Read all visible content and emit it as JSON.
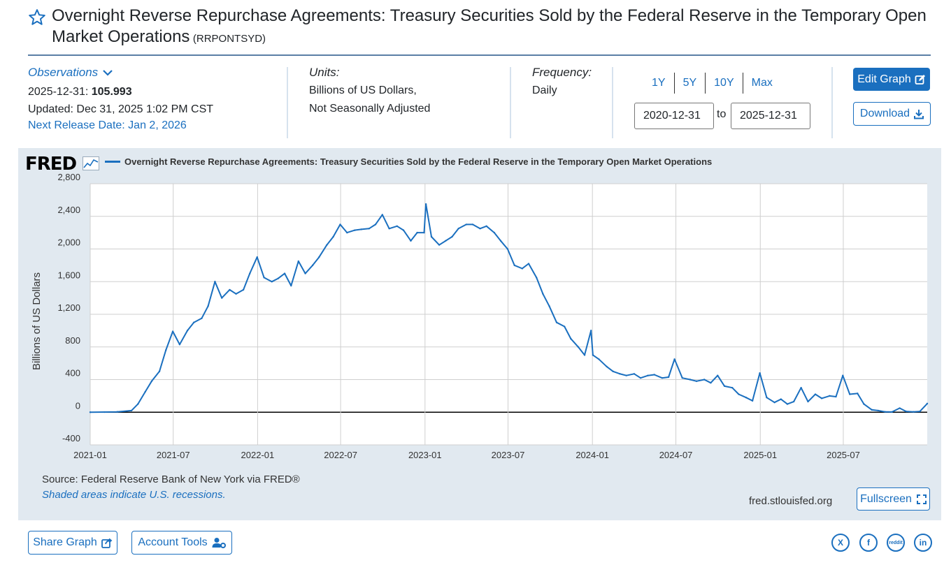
{
  "header": {
    "title": "Overnight Reverse Repurchase Agreements: Treasury Securities Sold by the Federal Reserve in the Temporary Open Market Operations",
    "series_id": "(RRPONTSYD)"
  },
  "observations": {
    "label": "Observations",
    "date": "2025-12-31:",
    "value": "105.993",
    "updated": "Updated: Dec 31, 2025 1:02 PM CST",
    "next_release": "Next Release Date: Jan 2, 2026"
  },
  "units": {
    "label": "Units:",
    "line1": "Billions of US Dollars,",
    "line2": "Not Seasonally Adjusted"
  },
  "frequency": {
    "label": "Frequency:",
    "value": "Daily"
  },
  "range": {
    "buttons": [
      "1Y",
      "5Y",
      "10Y",
      "Max"
    ],
    "start": "2020-12-31",
    "to": "to",
    "end": "2025-12-31"
  },
  "actions": {
    "edit_graph": "Edit Graph",
    "download": "Download",
    "fullscreen": "Fullscreen",
    "share_graph": "Share Graph",
    "account_tools": "Account Tools"
  },
  "graph": {
    "logo": "FRED",
    "source": "Source: Federal Reserve Bank of New York via FRED®",
    "recession_note": "Shaded areas indicate U.S. recessions.",
    "url": "fred.stlouisfed.org"
  },
  "social": [
    "X",
    "f",
    "reddit",
    "in"
  ],
  "colors": {
    "accent": "#1a6fbf",
    "line": "#1a6fbf",
    "panel": "#e1e9f0"
  },
  "chart_data": {
    "type": "line",
    "title": "Overnight Reverse Repurchase Agreements: Treasury Securities Sold by the Federal Reserve in the Temporary Open Market Operations",
    "xlabel": "",
    "ylabel": "Billions of US Dollars",
    "ylim": [
      -400,
      2800
    ],
    "yticks": [
      -400,
      0,
      400,
      800,
      1200,
      1600,
      2000,
      2400,
      2800
    ],
    "ytick_labels": [
      "-400",
      "0",
      "400",
      "800",
      "1,200",
      "1,600",
      "2,000",
      "2,400",
      "2,800"
    ],
    "xlim": [
      "2021-01-01",
      "2025-12-31"
    ],
    "xtick_labels": [
      "2021-01",
      "2021-07",
      "2022-01",
      "2022-07",
      "2023-01",
      "2023-07",
      "2024-01",
      "2024-07",
      "2025-01",
      "2025-07"
    ],
    "grid": true,
    "series": [
      {
        "name": "Overnight Reverse Repurchase Agreements: Treasury Securities Sold by the Federal Reserve in the Temporary Open Market Operations",
        "x": [
          "2021-01-01",
          "2021-02-01",
          "2021-03-01",
          "2021-04-01",
          "2021-04-15",
          "2021-05-01",
          "2021-05-15",
          "2021-06-01",
          "2021-06-15",
          "2021-06-30",
          "2021-07-15",
          "2021-08-01",
          "2021-08-15",
          "2021-09-01",
          "2021-09-15",
          "2021-09-30",
          "2021-10-15",
          "2021-11-01",
          "2021-11-15",
          "2021-12-01",
          "2021-12-15",
          "2021-12-31",
          "2022-01-15",
          "2022-02-01",
          "2022-02-15",
          "2022-03-01",
          "2022-03-15",
          "2022-03-31",
          "2022-04-15",
          "2022-05-01",
          "2022-05-15",
          "2022-06-01",
          "2022-06-15",
          "2022-06-30",
          "2022-07-15",
          "2022-08-01",
          "2022-08-15",
          "2022-09-01",
          "2022-09-15",
          "2022-09-30",
          "2022-10-15",
          "2022-11-01",
          "2022-11-15",
          "2022-12-01",
          "2022-12-15",
          "2022-12-30",
          "2023-01-03",
          "2023-01-15",
          "2023-02-01",
          "2023-02-15",
          "2023-03-01",
          "2023-03-15",
          "2023-04-01",
          "2023-04-15",
          "2023-05-01",
          "2023-05-15",
          "2023-06-01",
          "2023-06-15",
          "2023-06-30",
          "2023-07-15",
          "2023-08-01",
          "2023-08-15",
          "2023-09-01",
          "2023-09-15",
          "2023-09-29",
          "2023-10-15",
          "2023-11-01",
          "2023-11-15",
          "2023-12-01",
          "2023-12-15",
          "2023-12-29",
          "2024-01-02",
          "2024-01-15",
          "2024-02-01",
          "2024-02-15",
          "2024-03-01",
          "2024-03-15",
          "2024-04-01",
          "2024-04-15",
          "2024-05-01",
          "2024-05-15",
          "2024-06-01",
          "2024-06-15",
          "2024-06-28",
          "2024-07-15",
          "2024-08-01",
          "2024-08-15",
          "2024-09-01",
          "2024-09-15",
          "2024-09-30",
          "2024-10-15",
          "2024-11-01",
          "2024-11-15",
          "2024-12-01",
          "2024-12-15",
          "2024-12-31",
          "2025-01-15",
          "2025-02-01",
          "2025-02-15",
          "2025-03-01",
          "2025-03-15",
          "2025-03-31",
          "2025-04-15",
          "2025-05-01",
          "2025-05-15",
          "2025-06-01",
          "2025-06-15",
          "2025-06-30",
          "2025-07-15",
          "2025-08-01",
          "2025-08-15",
          "2025-09-01",
          "2025-09-15",
          "2025-09-30",
          "2025-10-15",
          "2025-11-01",
          "2025-11-15",
          "2025-12-01",
          "2025-12-15",
          "2025-12-31"
        ],
        "values": [
          0,
          2,
          5,
          20,
          100,
          250,
          380,
          500,
          760,
          990,
          830,
          1000,
          1100,
          1150,
          1300,
          1600,
          1400,
          1500,
          1450,
          1500,
          1700,
          1900,
          1650,
          1600,
          1640,
          1700,
          1550,
          1850,
          1700,
          1800,
          1900,
          2050,
          2150,
          2300,
          2200,
          2230,
          2240,
          2250,
          2300,
          2420,
          2250,
          2280,
          2230,
          2100,
          2200,
          2200,
          2550,
          2150,
          2050,
          2100,
          2150,
          2250,
          2300,
          2300,
          2250,
          2280,
          2200,
          2100,
          2000,
          1800,
          1760,
          1820,
          1650,
          1450,
          1300,
          1100,
          1050,
          900,
          800,
          700,
          1000,
          700,
          650,
          560,
          500,
          470,
          450,
          470,
          420,
          450,
          460,
          420,
          430,
          650,
          420,
          400,
          380,
          400,
          360,
          450,
          320,
          300,
          220,
          180,
          140,
          480,
          180,
          120,
          160,
          100,
          130,
          300,
          130,
          220,
          170,
          200,
          190,
          450,
          220,
          230,
          100,
          30,
          20,
          5,
          3,
          50,
          10,
          5,
          10,
          105.993
        ]
      }
    ]
  }
}
